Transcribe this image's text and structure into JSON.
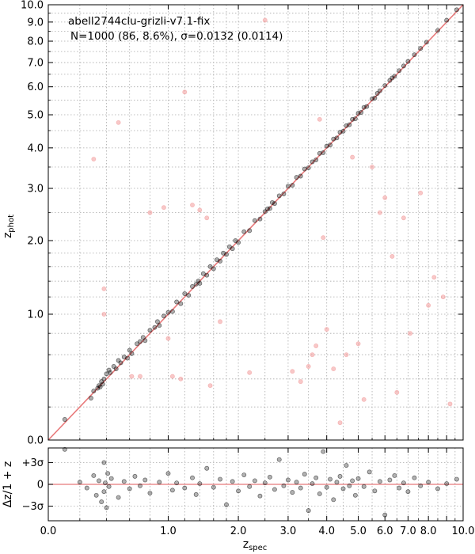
{
  "chart_data": [
    {
      "type": "scatter",
      "panel": "main",
      "scale": "log(1+z)",
      "title_line1": "abell2744clu-grizli-v7.1-fix",
      "title_line2": "N=1000 (86,  8.6%), σ=0.0132 (0.0114)",
      "xlabel_main": "z",
      "xlabel_sub": "spec",
      "ylabel_main": "z",
      "ylabel_sub": "phot",
      "xlim": [
        0.0,
        10.0
      ],
      "ylim": [
        0.0,
        10.0
      ],
      "grid": true,
      "major_ticks": [
        "0.0",
        "1.0",
        "2.0",
        "3.0",
        "4.0",
        "5.0",
        "6.0",
        "7.0",
        "8.0",
        "9.0",
        "10.0"
      ],
      "major_tick_values": [
        0,
        1,
        2,
        3,
        4,
        5,
        6,
        7,
        8,
        9,
        10
      ],
      "x_tick_labels": [
        "0.0",
        "1.0",
        "2.0",
        "3.0",
        "4.0",
        "5.0",
        "6.0",
        "7.0",
        "8.0",
        "10.0"
      ],
      "minor_tick_values": [
        0.2,
        0.4,
        0.6,
        0.8,
        1.2,
        1.4,
        1.6,
        1.8,
        2.5,
        3.5,
        4.5,
        5.5,
        6.5,
        7.5,
        8.5,
        9.5
      ],
      "one_to_one_line": {
        "color": "#e8797a"
      },
      "series": [
        {
          "name": "good",
          "color": "#000000",
          "points": [
            [
              0.1,
              0.12
            ],
            [
              0.28,
              0.26
            ],
            [
              0.3,
              0.31
            ],
            [
              0.33,
              0.33
            ],
            [
              0.34,
              0.35
            ],
            [
              0.35,
              0.34
            ],
            [
              0.36,
              0.38
            ],
            [
              0.37,
              0.36
            ],
            [
              0.38,
              0.4
            ],
            [
              0.4,
              0.44
            ],
            [
              0.42,
              0.47
            ],
            [
              0.43,
              0.45
            ],
            [
              0.46,
              0.5
            ],
            [
              0.48,
              0.48
            ],
            [
              0.5,
              0.55
            ],
            [
              0.52,
              0.53
            ],
            [
              0.55,
              0.58
            ],
            [
              0.58,
              0.57
            ],
            [
              0.6,
              0.64
            ],
            [
              0.62,
              0.61
            ],
            [
              0.67,
              0.7
            ],
            [
              0.7,
              0.72
            ],
            [
              0.73,
              0.76
            ],
            [
              0.75,
              0.73
            ],
            [
              0.8,
              0.83
            ],
            [
              0.85,
              0.86
            ],
            [
              0.88,
              0.92
            ],
            [
              0.9,
              0.88
            ],
            [
              0.95,
              0.98
            ],
            [
              1.0,
              1.02
            ],
            [
              1.05,
              1.03
            ],
            [
              1.1,
              1.14
            ],
            [
              1.15,
              1.12
            ],
            [
              1.2,
              1.24
            ],
            [
              1.25,
              1.22
            ],
            [
              1.3,
              1.33
            ],
            [
              1.35,
              1.36
            ],
            [
              1.38,
              1.4
            ],
            [
              1.4,
              1.37
            ],
            [
              1.45,
              1.5
            ],
            [
              1.5,
              1.48
            ],
            [
              1.55,
              1.6
            ],
            [
              1.6,
              1.57
            ],
            [
              1.65,
              1.7
            ],
            [
              1.7,
              1.68
            ],
            [
              1.75,
              1.8
            ],
            [
              1.8,
              1.78
            ],
            [
              1.85,
              1.9
            ],
            [
              1.9,
              1.87
            ],
            [
              1.95,
              2.0
            ],
            [
              2.0,
              1.97
            ],
            [
              2.1,
              2.15
            ],
            [
              2.2,
              2.17
            ],
            [
              2.3,
              2.35
            ],
            [
              2.4,
              2.38
            ],
            [
              2.5,
              2.52
            ],
            [
              2.55,
              2.57
            ],
            [
              2.6,
              2.58
            ],
            [
              2.65,
              2.7
            ],
            [
              2.7,
              2.68
            ],
            [
              2.8,
              2.84
            ],
            [
              2.9,
              2.88
            ],
            [
              3.0,
              3.05
            ],
            [
              3.1,
              3.07
            ],
            [
              3.2,
              3.25
            ],
            [
              3.3,
              3.28
            ],
            [
              3.4,
              3.45
            ],
            [
              3.5,
              3.48
            ],
            [
              3.6,
              3.63
            ],
            [
              3.7,
              3.68
            ],
            [
              3.8,
              3.85
            ],
            [
              3.9,
              3.87
            ],
            [
              4.0,
              4.05
            ],
            [
              4.1,
              4.08
            ],
            [
              4.2,
              4.25
            ],
            [
              4.3,
              4.28
            ],
            [
              4.4,
              4.45
            ],
            [
              4.5,
              4.48
            ],
            [
              4.6,
              4.65
            ],
            [
              4.7,
              4.68
            ],
            [
              4.8,
              4.85
            ],
            [
              4.9,
              4.87
            ],
            [
              5.0,
              5.05
            ],
            [
              5.1,
              5.08
            ],
            [
              5.2,
              5.25
            ],
            [
              5.3,
              5.28
            ],
            [
              5.5,
              5.55
            ],
            [
              5.6,
              5.58
            ],
            [
              5.7,
              5.75
            ],
            [
              5.8,
              5.85
            ],
            [
              6.0,
              6.05
            ],
            [
              6.2,
              6.25
            ],
            [
              6.3,
              6.35
            ],
            [
              6.4,
              6.42
            ],
            [
              6.6,
              6.65
            ],
            [
              6.8,
              6.85
            ],
            [
              7.0,
              7.05
            ],
            [
              7.3,
              7.35
            ],
            [
              7.6,
              7.65
            ],
            [
              7.9,
              7.95
            ],
            [
              8.5,
              8.55
            ],
            [
              9.0,
              9.1
            ],
            [
              9.6,
              9.7
            ]
          ]
        },
        {
          "name": "outliers",
          "color": "#f29a9a",
          "points": [
            [
              0.3,
              3.7
            ],
            [
              0.38,
              1.0
            ],
            [
              0.38,
              1.3
            ],
            [
              0.5,
              4.75
            ],
            [
              0.62,
              0.42
            ],
            [
              0.7,
              0.42
            ],
            [
              0.8,
              2.5
            ],
            [
              0.95,
              2.6
            ],
            [
              1.0,
              0.75
            ],
            [
              1.05,
              0.42
            ],
            [
              1.15,
              0.4
            ],
            [
              1.2,
              5.8
            ],
            [
              1.3,
              2.65
            ],
            [
              1.4,
              2.55
            ],
            [
              1.5,
              2.4
            ],
            [
              1.55,
              0.35
            ],
            [
              1.7,
              0.92
            ],
            [
              2.2,
              0.45
            ],
            [
              2.5,
              9.1
            ],
            [
              3.1,
              0.46
            ],
            [
              3.3,
              0.38
            ],
            [
              3.5,
              0.5
            ],
            [
              3.6,
              0.6
            ],
            [
              3.7,
              0.68
            ],
            [
              3.8,
              4.85
            ],
            [
              3.9,
              2.05
            ],
            [
              4.0,
              0.84
            ],
            [
              4.2,
              0.48
            ],
            [
              4.4,
              0.1
            ],
            [
              4.6,
              0.6
            ],
            [
              4.8,
              3.75
            ],
            [
              5.0,
              0.7
            ],
            [
              5.2,
              0.25
            ],
            [
              5.5,
              3.5
            ],
            [
              5.8,
              2.5
            ],
            [
              6.0,
              2.8
            ],
            [
              6.3,
              1.75
            ],
            [
              6.5,
              0.3
            ],
            [
              6.8,
              2.4
            ],
            [
              7.1,
              0.8
            ],
            [
              7.6,
              2.9
            ],
            [
              8.0,
              1.1
            ],
            [
              8.3,
              1.45
            ],
            [
              8.8,
              1.2
            ],
            [
              9.2,
              0.22
            ]
          ]
        }
      ]
    },
    {
      "type": "scatter",
      "panel": "residual",
      "ylabel": "Δz/1 + z",
      "y_tick_labels": [
        "+3σ",
        "0",
        "−3σ"
      ],
      "y_tick_sigma": [
        3,
        0,
        -3
      ],
      "sigma": 0.0132,
      "xlim": [
        0.0,
        10.0
      ],
      "ylim_sigma": [
        -5,
        5
      ],
      "grid": true,
      "series": [
        {
          "name": "residuals",
          "color": "#000000",
          "points": [
            [
              0.1,
              4.8
            ],
            [
              0.2,
              0.3
            ],
            [
              0.25,
              -0.5
            ],
            [
              0.3,
              1.2
            ],
            [
              0.32,
              -1.5
            ],
            [
              0.34,
              0.5
            ],
            [
              0.36,
              -2.4
            ],
            [
              0.38,
              3.0
            ],
            [
              0.38,
              -1.0
            ],
            [
              0.39,
              0.2
            ],
            [
              0.4,
              -3.2
            ],
            [
              0.41,
              1.5
            ],
            [
              0.42,
              -0.3
            ],
            [
              0.44,
              0.8
            ],
            [
              0.5,
              -1.8
            ],
            [
              0.55,
              0.4
            ],
            [
              0.6,
              -0.6
            ],
            [
              0.65,
              1.1
            ],
            [
              0.7,
              -0.2
            ],
            [
              0.75,
              0.6
            ],
            [
              0.8,
              -1.2
            ],
            [
              0.9,
              0.3
            ],
            [
              1.0,
              1.5
            ],
            [
              1.05,
              -0.8
            ],
            [
              1.1,
              0.2
            ],
            [
              1.2,
              -0.5
            ],
            [
              1.3,
              0.9
            ],
            [
              1.35,
              -1.4
            ],
            [
              1.4,
              0.1
            ],
            [
              1.5,
              2.2
            ],
            [
              1.6,
              -0.4
            ],
            [
              1.7,
              0.7
            ],
            [
              1.8,
              -2.8
            ],
            [
              1.9,
              0.4
            ],
            [
              2.0,
              -0.9
            ],
            [
              2.1,
              1.3
            ],
            [
              2.2,
              -0.3
            ],
            [
              2.3,
              0.5
            ],
            [
              2.4,
              -1.6
            ],
            [
              2.5,
              0.2
            ],
            [
              2.6,
              1.0
            ],
            [
              2.7,
              -0.7
            ],
            [
              2.8,
              3.4
            ],
            [
              2.9,
              -0.2
            ],
            [
              3.0,
              0.6
            ],
            [
              3.1,
              -1.1
            ],
            [
              3.2,
              0.3
            ],
            [
              3.3,
              -0.5
            ],
            [
              3.4,
              1.4
            ],
            [
              3.5,
              -3.6
            ],
            [
              3.6,
              0.1
            ],
            [
              3.7,
              0.9
            ],
            [
              3.8,
              -1.3
            ],
            [
              3.9,
              4.5
            ],
            [
              4.0,
              -0.4
            ],
            [
              4.1,
              0.7
            ],
            [
              4.2,
              -2.1
            ],
            [
              4.3,
              0.3
            ],
            [
              4.4,
              1.1
            ],
            [
              4.5,
              -0.6
            ],
            [
              4.6,
              2.6
            ],
            [
              4.7,
              -0.2
            ],
            [
              4.8,
              0.5
            ],
            [
              4.9,
              -1.5
            ],
            [
              5.0,
              0.8
            ],
            [
              5.2,
              -0.3
            ],
            [
              5.4,
              1.7
            ],
            [
              5.6,
              -0.9
            ],
            [
              5.8,
              0.4
            ],
            [
              6.0,
              -4.2
            ],
            [
              6.2,
              0.6
            ],
            [
              6.4,
              1.2
            ],
            [
              6.6,
              -0.5
            ],
            [
              6.8,
              0.2
            ],
            [
              7.0,
              -1.0
            ],
            [
              7.3,
              0.9
            ],
            [
              7.6,
              -0.2
            ],
            [
              8.0,
              0.3
            ],
            [
              8.5,
              -0.6
            ],
            [
              9.0,
              0.1
            ],
            [
              9.6,
              0.7
            ]
          ]
        }
      ]
    }
  ]
}
